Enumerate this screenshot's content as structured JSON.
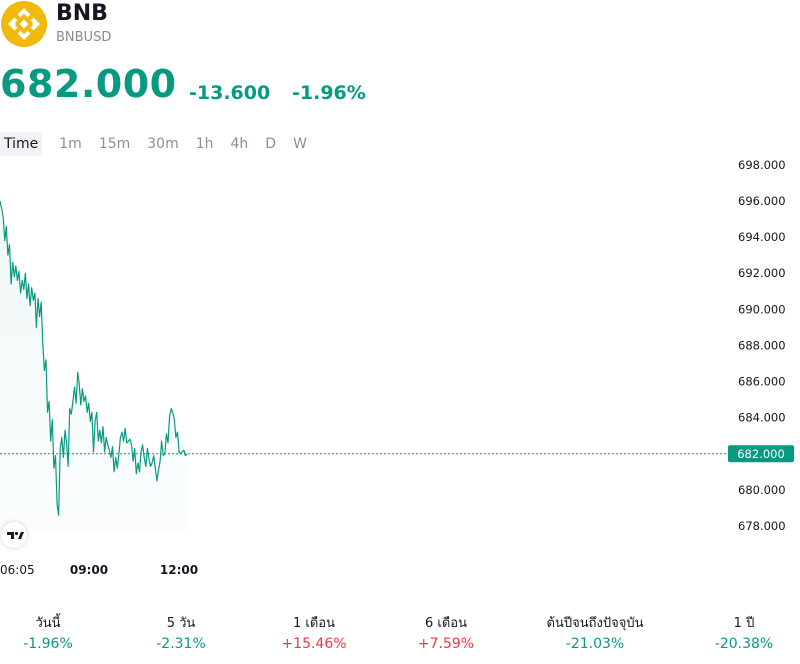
{
  "header": {
    "name": "BNB",
    "ticker": "BNBUSD",
    "logo_icon": "bnb-logo-icon",
    "logo_color": "#F0B90B"
  },
  "quote": {
    "price": "682.000",
    "change": "-13.600",
    "change_pct": "-1.96%",
    "color": "#089981"
  },
  "tabs": [
    {
      "label": "Time",
      "active": true
    },
    {
      "label": "1m",
      "active": false
    },
    {
      "label": "15m",
      "active": false
    },
    {
      "label": "30m",
      "active": false
    },
    {
      "label": "1h",
      "active": false
    },
    {
      "label": "4h",
      "active": false
    },
    {
      "label": "D",
      "active": false
    },
    {
      "label": "W",
      "active": false
    }
  ],
  "chart_data": {
    "type": "area",
    "y_ticks": [
      "698.000",
      "696.000",
      "694.000",
      "692.000",
      "690.000",
      "688.000",
      "686.000",
      "684.000",
      "682.000",
      "680.000",
      "678.000"
    ],
    "ylim": [
      677.0,
      698.2
    ],
    "x_ticks": [
      {
        "label": "06:05",
        "bold": false
      },
      {
        "label": "09:00",
        "bold": true
      },
      {
        "label": "12:00",
        "bold": true
      }
    ],
    "current_price_label": "682.000",
    "current_price": 682.0,
    "line_color": "#089981",
    "values": [
      696.0,
      695.6,
      695.1,
      693.8,
      694.6,
      693.0,
      693.6,
      691.4,
      692.6,
      691.8,
      692.4,
      691.6,
      692.1,
      690.9,
      691.6,
      691.1,
      692.0,
      690.6,
      691.4,
      690.2,
      691.2,
      690.5,
      690.9,
      689.0,
      690.6,
      689.6,
      690.4,
      688.1,
      686.6,
      687.2,
      684.3,
      684.9,
      682.7,
      683.9,
      681.2,
      681.9,
      679.2,
      678.6,
      682.3,
      682.9,
      681.8,
      683.3,
      682.6,
      681.3,
      684.5,
      684.2,
      684.9,
      685.7,
      684.8,
      686.5,
      685.9,
      684.7,
      685.6,
      684.9,
      685.2,
      684.3,
      684.8,
      683.8,
      684.3,
      682.1,
      683.8,
      684.3,
      682.7,
      683.3,
      682.6,
      683.5,
      682.1,
      682.9,
      682.5,
      682.2,
      681.8,
      682.4,
      681.0,
      681.8,
      681.2,
      682.0,
      682.9,
      683.2,
      682.7,
      683.4,
      682.6,
      682.7,
      682.8,
      682.5,
      681.6,
      682.3,
      680.9,
      681.5,
      681.0,
      682.1,
      682.5,
      681.8,
      681.3,
      682.3,
      681.7,
      681.3,
      681.5,
      681.9,
      681.2,
      680.5,
      681.1,
      681.6,
      682.7,
      681.9,
      682.0,
      683.1,
      682.6,
      684.1,
      684.5,
      684.3,
      683.9,
      682.9,
      683.2,
      682.1,
      682.0,
      682.1,
      682.2,
      681.9,
      682.0
    ],
    "grid": false
  },
  "performance": [
    {
      "label": "วันนี้",
      "value": "-1.96%",
      "direction": "down"
    },
    {
      "label": "5 วัน",
      "value": "-2.31%",
      "direction": "down"
    },
    {
      "label": "1 เดือน",
      "value": "+15.46%",
      "direction": "up"
    },
    {
      "label": "6 เดือน",
      "value": "+7.59%",
      "direction": "up"
    },
    {
      "label": "ต้นปีจนถึงปัจจุบัน",
      "value": "-21.03%",
      "direction": "down"
    },
    {
      "label": "1 ปี",
      "value": "-20.38%",
      "direction": "down"
    }
  ],
  "tv_logo_icon": "tradingview-logo-icon"
}
